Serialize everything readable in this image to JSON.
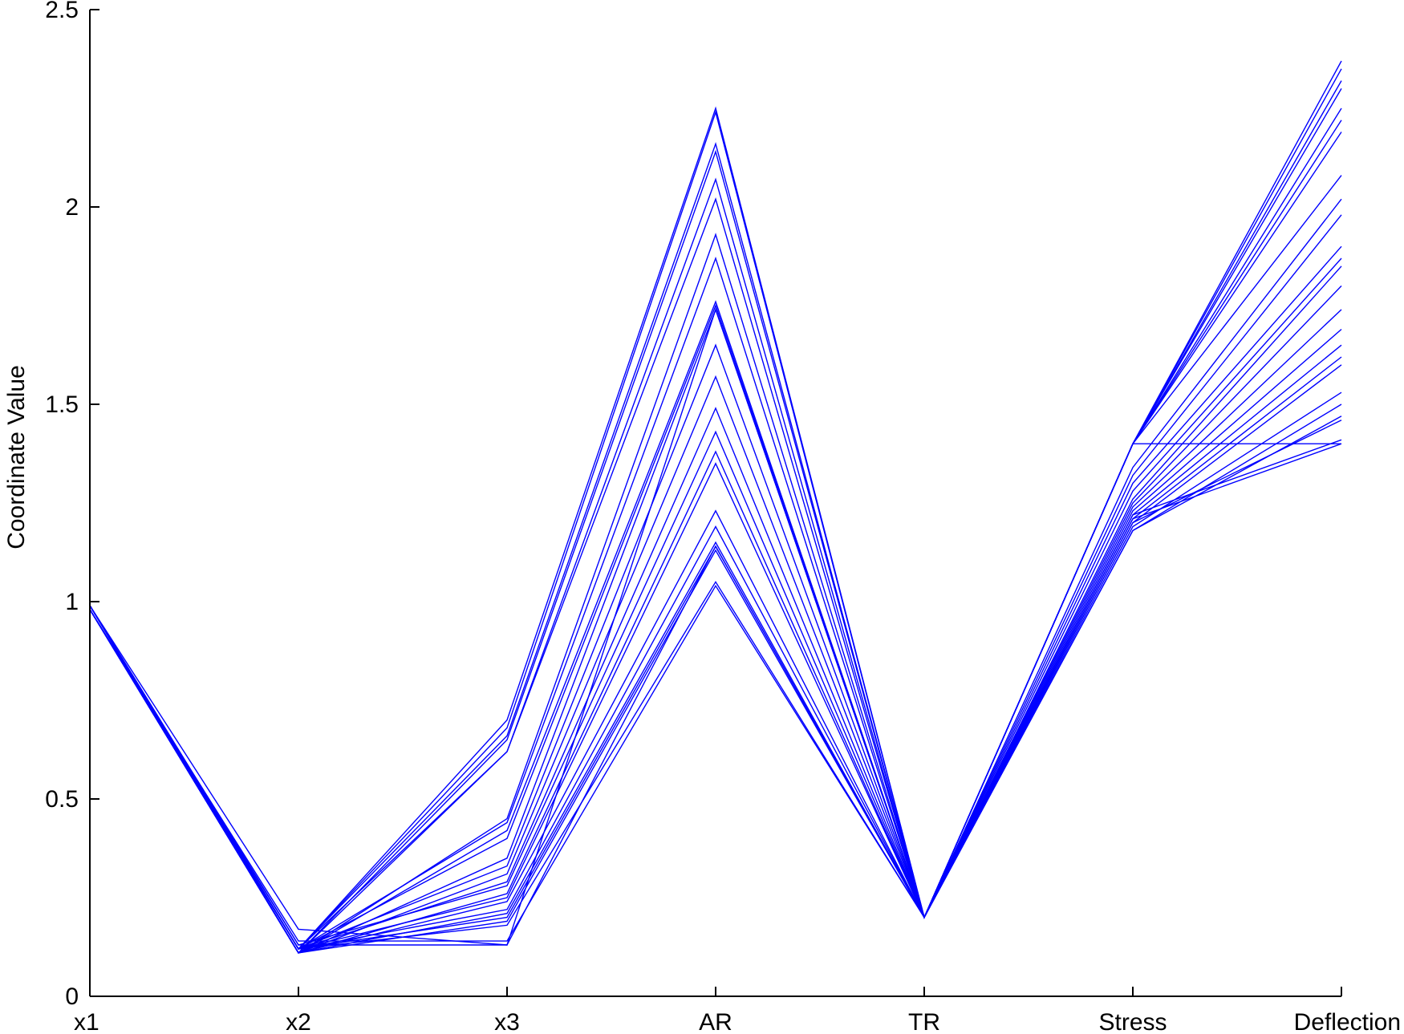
{
  "chart_data": {
    "type": "line",
    "subtype": "parallel-coordinates",
    "title": "",
    "xlabel": "",
    "ylabel": "Coordinate Value",
    "categories": [
      "x1",
      "x2",
      "x3",
      "AR",
      "TR",
      "Stress",
      "Deflection"
    ],
    "ylim": [
      0,
      2.5
    ],
    "yticks": [
      0,
      0.5,
      1,
      1.5,
      2,
      2.5
    ],
    "ytick_labels": [
      "0",
      "0.5",
      "1",
      "1.5",
      "2",
      "2.5"
    ],
    "grid": false,
    "legend": "none",
    "line_color": "#0000ff",
    "series": [
      {
        "values": [
          0.99,
          0.12,
          0.7,
          2.25,
          0.2,
          1.4,
          2.37
        ]
      },
      {
        "values": [
          0.99,
          0.12,
          0.68,
          2.24,
          0.2,
          1.4,
          2.35
        ]
      },
      {
        "values": [
          0.99,
          0.12,
          0.66,
          2.16,
          0.2,
          1.4,
          2.32
        ]
      },
      {
        "values": [
          0.98,
          0.11,
          0.65,
          2.14,
          0.2,
          1.4,
          2.3
        ]
      },
      {
        "values": [
          0.98,
          0.11,
          0.62,
          2.07,
          0.2,
          1.4,
          2.25
        ]
      },
      {
        "values": [
          0.98,
          0.12,
          0.62,
          2.02,
          0.2,
          1.4,
          2.22
        ]
      },
      {
        "values": [
          0.99,
          0.11,
          0.45,
          1.93,
          0.2,
          1.4,
          2.19
        ]
      },
      {
        "values": [
          0.98,
          0.12,
          0.44,
          1.87,
          0.2,
          1.4,
          2.08
        ]
      },
      {
        "values": [
          0.99,
          0.11,
          0.42,
          1.76,
          0.2,
          1.34,
          2.02
        ]
      },
      {
        "values": [
          0.98,
          0.12,
          0.4,
          1.75,
          0.2,
          1.32,
          1.98
        ]
      },
      {
        "values": [
          0.99,
          0.11,
          0.35,
          1.74,
          0.2,
          1.3,
          1.9
        ]
      },
      {
        "values": [
          0.98,
          0.12,
          0.33,
          1.65,
          0.2,
          1.28,
          1.87
        ]
      },
      {
        "values": [
          0.99,
          0.11,
          0.31,
          1.57,
          0.2,
          1.26,
          1.85
        ]
      },
      {
        "values": [
          0.98,
          0.12,
          0.29,
          1.49,
          0.2,
          1.25,
          1.8
        ]
      },
      {
        "values": [
          0.99,
          0.13,
          0.28,
          1.43,
          0.2,
          1.24,
          1.74
        ]
      },
      {
        "values": [
          0.98,
          0.11,
          0.26,
          1.38,
          0.2,
          1.23,
          1.69
        ]
      },
      {
        "values": [
          0.99,
          0.12,
          0.25,
          1.35,
          0.2,
          1.22,
          1.65
        ]
      },
      {
        "values": [
          0.98,
          0.11,
          0.24,
          1.23,
          0.2,
          1.21,
          1.62
        ]
      },
      {
        "values": [
          0.99,
          0.12,
          0.22,
          1.19,
          0.2,
          1.2,
          1.6
        ]
      },
      {
        "values": [
          0.98,
          0.11,
          0.21,
          1.15,
          0.2,
          1.19,
          1.53
        ]
      },
      {
        "values": [
          0.99,
          0.12,
          0.2,
          1.14,
          0.2,
          1.18,
          1.5
        ]
      },
      {
        "values": [
          0.98,
          0.11,
          0.19,
          1.13,
          0.2,
          1.18,
          1.47
        ]
      },
      {
        "values": [
          0.99,
          0.12,
          0.18,
          1.05,
          0.2,
          1.2,
          1.46
        ]
      },
      {
        "values": [
          0.98,
          0.14,
          0.14,
          1.04,
          0.2,
          1.22,
          1.41
        ]
      },
      {
        "values": [
          0.99,
          0.17,
          0.13,
          1.14,
          0.2,
          1.21,
          1.4
        ]
      },
      {
        "values": [
          0.98,
          0.13,
          0.13,
          1.74,
          0.2,
          1.4,
          1.4
        ]
      }
    ]
  }
}
